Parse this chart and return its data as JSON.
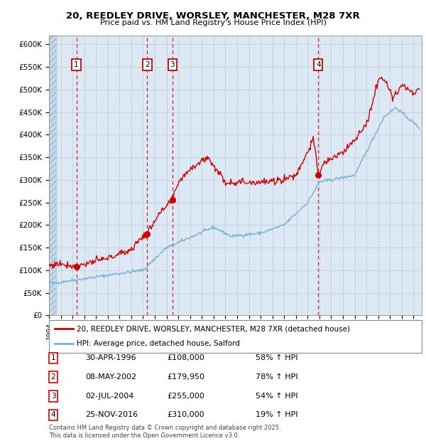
{
  "title1": "20, REEDLEY DRIVE, WORSLEY, MANCHESTER, M28 7XR",
  "title2": "Price paid vs. HM Land Registry's House Price Index (HPI)",
  "ylim": [
    0,
    620000
  ],
  "yticks": [
    0,
    50000,
    100000,
    150000,
    200000,
    250000,
    300000,
    350000,
    400000,
    450000,
    500000,
    550000,
    600000
  ],
  "ytick_labels": [
    "£0",
    "£50K",
    "£100K",
    "£150K",
    "£200K",
    "£250K",
    "£300K",
    "£350K",
    "£400K",
    "£450K",
    "£500K",
    "£550K",
    "£600K"
  ],
  "xlim_start": 1994.0,
  "xlim_end": 2025.7,
  "sale_color": "#cc0000",
  "hpi_color": "#7ab0d4",
  "background_color": "#dce9f5",
  "grid_color": "#c0c8d0",
  "sale_dates_num": [
    1996.33,
    2002.36,
    2004.5,
    2016.9
  ],
  "sale_prices": [
    108000,
    179950,
    255000,
    310000
  ],
  "sale_labels": [
    "1",
    "2",
    "3",
    "4"
  ],
  "legend_sale": "20, REEDLEY DRIVE, WORSLEY, MANCHESTER, M28 7XR (detached house)",
  "legend_hpi": "HPI: Average price, detached house, Salford",
  "table_entries": [
    {
      "num": "1",
      "date": "30-APR-1996",
      "price": "£108,000",
      "hpi": "58% ↑ HPI"
    },
    {
      "num": "2",
      "date": "08-MAY-2002",
      "price": "£179,950",
      "hpi": "78% ↑ HPI"
    },
    {
      "num": "3",
      "date": "02-JUL-2004",
      "price": "£255,000",
      "hpi": "54% ↑ HPI"
    },
    {
      "num": "4",
      "date": "25-NOV-2016",
      "price": "£310,000",
      "hpi": "19% ↑ HPI"
    }
  ],
  "footer": "Contains HM Land Registry data © Crown copyright and database right 2025.\nThis data is licensed under the Open Government Licence v3.0."
}
